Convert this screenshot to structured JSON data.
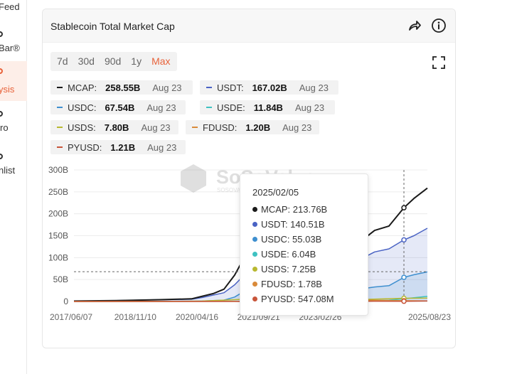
{
  "nav": {
    "items": [
      {
        "label": "Feed",
        "top": 0,
        "active": false
      },
      {
        "label": "Bar®",
        "top": 40,
        "active": false
      },
      {
        "label": "ysis",
        "top": 86,
        "active": true
      },
      {
        "label": "ro",
        "top": 152,
        "active": false
      },
      {
        "label": "nlist",
        "top": 212,
        "active": false
      }
    ]
  },
  "card": {
    "title": "Stablecoin Total Market Cap"
  },
  "ranges": [
    "7d",
    "30d",
    "90d",
    "1y",
    "Max"
  ],
  "active_range": "Max",
  "legend": [
    {
      "name": "MCAP:",
      "value": "258.55B",
      "date": "Aug 23",
      "color": "#1a1a1a"
    },
    {
      "name": "USDT:",
      "value": "167.02B",
      "date": "Aug 23",
      "color": "#4a63c4"
    },
    {
      "name": "USDC:",
      "value": "67.54B",
      "date": "Aug 23",
      "color": "#3e8fcf"
    },
    {
      "name": "USDE:",
      "value": "11.84B",
      "date": "Aug 23",
      "color": "#3fc1c1"
    },
    {
      "name": "USDS:",
      "value": "7.80B",
      "date": "Aug 23",
      "color": "#b8b830"
    },
    {
      "name": "FDUSD:",
      "value": "1.20B",
      "date": "Aug 23",
      "color": "#d98a3a"
    },
    {
      "name": "PYUSD:",
      "value": "1.21B",
      "date": "Aug 23",
      "color": "#c8553a"
    }
  ],
  "tooltip": {
    "date": "2025/02/05",
    "rows": [
      {
        "text": "MCAP: 213.76B",
        "color": "#1a1a1a"
      },
      {
        "text": "USDT: 140.51B",
        "color": "#4a63c4"
      },
      {
        "text": "USDC: 55.03B",
        "color": "#3e8fcf"
      },
      {
        "text": "USDE: 6.04B",
        "color": "#3fc1c1"
      },
      {
        "text": "USDS: 7.25B",
        "color": "#b8b830"
      },
      {
        "text": "FDUSD: 1.78B",
        "color": "#d98a3a"
      },
      {
        "text": "PYUSD: 547.08M",
        "color": "#c8553a"
      }
    ]
  },
  "watermark": {
    "brand": "SoSoValue",
    "sub": "SOSOVALUE"
  },
  "chart_data": {
    "type": "area",
    "title": "Stablecoin Total Market Cap",
    "ylim": [
      0,
      300
    ],
    "yunit": "B",
    "yticks": [
      0,
      50,
      100,
      150,
      200,
      250,
      300
    ],
    "ytick_labels": [
      "0",
      "50B",
      "100B",
      "150B",
      "200B",
      "250B",
      "300B"
    ],
    "xlim": [
      "2017/06/07",
      "2025/08/23"
    ],
    "xticks": [
      "2017/06/07",
      "2018/11/10",
      "2020/04/16",
      "2021/09/21",
      "2023/02/26",
      "2025/08/23"
    ],
    "grid": true,
    "crosshair": {
      "x": "2025/02/05",
      "y": 68
    },
    "series": [
      {
        "name": "MCAP",
        "color": "#1a1a1a",
        "area": false,
        "x": [
          "2017/06/07",
          "2018/06/01",
          "2019/06/01",
          "2020/03/01",
          "2020/06/01",
          "2020/09/01",
          "2020/12/01",
          "2021/03/01",
          "2021/06/01",
          "2021/09/21",
          "2022/03/01",
          "2022/05/10",
          "2022/09/01",
          "2023/02/26",
          "2023/06/01",
          "2023/10/01",
          "2024/01/01",
          "2024/06/01",
          "2024/10/01",
          "2025/02/05",
          "2025/05/01",
          "2025/08/23"
        ],
        "values": [
          1,
          2,
          4,
          6,
          12,
          18,
          28,
          60,
          105,
          128,
          178,
          182,
          158,
          140,
          128,
          124,
          130,
          162,
          172,
          213.76,
          235,
          258.55
        ]
      },
      {
        "name": "USDT",
        "color": "#4a63c4",
        "area": true,
        "x": [
          "2017/06/07",
          "2018/06/01",
          "2019/06/01",
          "2020/03/01",
          "2020/06/01",
          "2020/12/01",
          "2021/03/01",
          "2021/06/01",
          "2021/09/21",
          "2022/03/01",
          "2022/05/10",
          "2023/02/26",
          "2023/06/01",
          "2024/01/01",
          "2024/06/01",
          "2024/10/01",
          "2025/02/05",
          "2025/05/01",
          "2025/08/23"
        ],
        "values": [
          0.5,
          2,
          4,
          5,
          9,
          20,
          38,
          63,
          69,
          80,
          83,
          72,
          83,
          92,
          113,
          120,
          140.51,
          150,
          167.02
        ]
      },
      {
        "name": "USDC",
        "color": "#3e8fcf",
        "area": true,
        "x": [
          "2017/06/07",
          "2018/10/01",
          "2019/06/01",
          "2020/03/01",
          "2020/06/01",
          "2020/12/01",
          "2021/03/01",
          "2021/06/01",
          "2021/09/21",
          "2022/03/01",
          "2022/06/01",
          "2023/02/26",
          "2023/06/01",
          "2023/10/01",
          "2024/06/01",
          "2024/10/01",
          "2025/02/05",
          "2025/05/01",
          "2025/08/23"
        ],
        "values": [
          0,
          0.3,
          0.4,
          0.6,
          1,
          3,
          10,
          25,
          30,
          52,
          55,
          41,
          28,
          24,
          33,
          36,
          55.03,
          61,
          67.54
        ]
      },
      {
        "name": "USDE",
        "color": "#3fc1c1",
        "area": false,
        "x": [
          "2017/06/07",
          "2023/12/01",
          "2024/03/01",
          "2024/10/01",
          "2025/02/05",
          "2025/08/23"
        ],
        "values": [
          0,
          0.5,
          2,
          3,
          6.04,
          11.84
        ]
      },
      {
        "name": "USDS",
        "color": "#b8b830",
        "area": false,
        "x": [
          "2017/06/07",
          "2019/11/01",
          "2020/06/01",
          "2021/03/01",
          "2021/09/21",
          "2022/06/01",
          "2023/02/26",
          "2024/01/01",
          "2025/02/05",
          "2025/08/23"
        ],
        "values": [
          0,
          0.3,
          1,
          4,
          7,
          6,
          5,
          4,
          7.25,
          7.8
        ]
      },
      {
        "name": "FDUSD",
        "color": "#d98a3a",
        "area": false,
        "x": [
          "2017/06/07",
          "2023/06/01",
          "2024/03/01",
          "2024/10/01",
          "2025/02/05",
          "2025/08/23"
        ],
        "values": [
          0,
          0.5,
          3,
          2.5,
          1.78,
          1.2
        ]
      },
      {
        "name": "PYUSD",
        "color": "#c8553a",
        "area": false,
        "x": [
          "2017/06/07",
          "2023/08/01",
          "2024/06/01",
          "2025/02/05",
          "2025/08/23"
        ],
        "values": [
          0,
          0.1,
          0.6,
          0.547,
          1.21
        ]
      }
    ]
  }
}
